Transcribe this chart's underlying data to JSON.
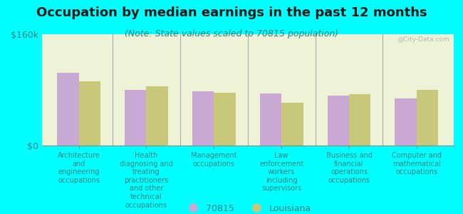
{
  "title": "Occupation by median earnings in the past 12 months",
  "subtitle": "(Note: State values scaled to 70815 population)",
  "background_color": "#00FFFF",
  "plot_bg_color": "#eef3d8",
  "categories": [
    "Architecture\nand\nengineering\noccupations",
    "Health\ndiagnosing and\ntreating\npractitioners\nand other\ntechnical\noccupations",
    "Management\noccupations",
    "Law\nenforcement\nworkers\nincluding\nsupervisors",
    "Business and\nfinancial\noperations\noccupations",
    "Computer and\nmathematical\noccupations"
  ],
  "values_70815": [
    105000,
    80000,
    78000,
    75000,
    72000,
    68000
  ],
  "values_louisiana": [
    92000,
    85000,
    76000,
    62000,
    74000,
    80000
  ],
  "color_70815": "#c9a8d4",
  "color_louisiana": "#c8c87a",
  "ylim": [
    0,
    160000
  ],
  "ytick_labels": [
    "$0",
    "$160k"
  ],
  "ytick_vals": [
    0,
    160000
  ],
  "legend_70815": "70815",
  "legend_louisiana": "Louisiana",
  "watermark": "@City-Data.com",
  "bar_width": 0.32,
  "title_fontsize": 13,
  "subtitle_fontsize": 9,
  "tick_label_fontsize": 7,
  "axis_label_color": "#2a8080",
  "title_color": "#1a1a1a",
  "divider_color": "#aaaaaa",
  "bottom_spine_color": "#888888"
}
